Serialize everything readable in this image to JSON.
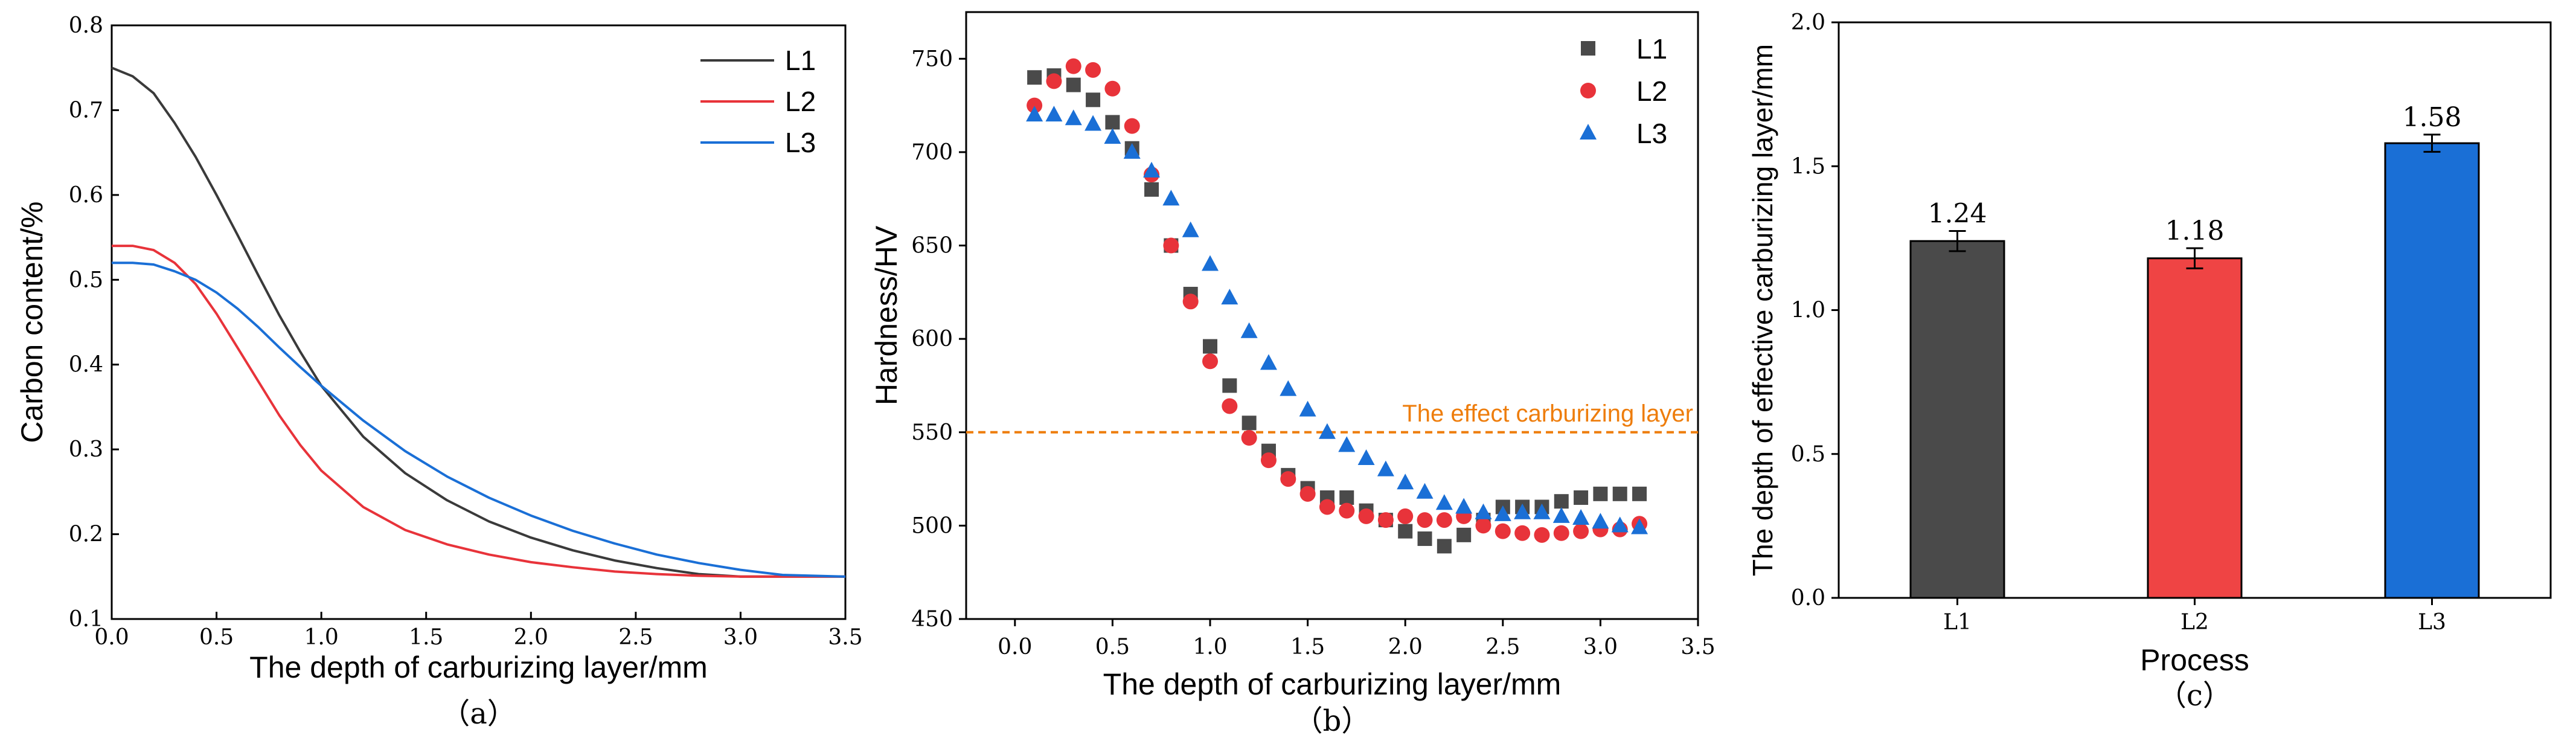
{
  "chart_data": [
    {
      "type": "line",
      "panel": "(a)",
      "caption": "（a）",
      "xlabel": "The depth of carburizing layer/mm",
      "ylabel": "Carbon content/%",
      "xlim": [
        0.0,
        3.5
      ],
      "ylim": [
        0.1,
        0.8
      ],
      "xticks": [
        0.0,
        0.5,
        1.0,
        1.5,
        2.0,
        2.5,
        3.0,
        3.5
      ],
      "yticks": [
        0.1,
        0.2,
        0.3,
        0.4,
        0.5,
        0.6,
        0.7,
        0.8
      ],
      "legend_position": "top-right",
      "series": [
        {
          "name": "L1",
          "color": "#3a3a3a",
          "x": [
            0.0,
            0.1,
            0.2,
            0.3,
            0.4,
            0.5,
            0.6,
            0.7,
            0.8,
            0.9,
            1.0,
            1.2,
            1.4,
            1.6,
            1.8,
            2.0,
            2.2,
            2.4,
            2.6,
            2.8,
            3.0,
            3.2,
            3.5
          ],
          "y": [
            0.75,
            0.74,
            0.72,
            0.685,
            0.645,
            0.6,
            0.553,
            0.505,
            0.458,
            0.415,
            0.375,
            0.315,
            0.272,
            0.24,
            0.215,
            0.196,
            0.181,
            0.169,
            0.16,
            0.153,
            0.15,
            0.15,
            0.15
          ]
        },
        {
          "name": "L2",
          "color": "#e8333a",
          "x": [
            0.0,
            0.1,
            0.2,
            0.3,
            0.4,
            0.5,
            0.6,
            0.7,
            0.8,
            0.9,
            1.0,
            1.2,
            1.4,
            1.6,
            1.8,
            2.0,
            2.2,
            2.4,
            2.6,
            2.8,
            3.0,
            3.2,
            3.5
          ],
          "y": [
            0.54,
            0.54,
            0.535,
            0.52,
            0.495,
            0.46,
            0.42,
            0.38,
            0.34,
            0.305,
            0.275,
            0.232,
            0.205,
            0.188,
            0.176,
            0.167,
            0.161,
            0.156,
            0.153,
            0.151,
            0.15,
            0.15,
            0.15
          ]
        },
        {
          "name": "L3",
          "color": "#1a6fd6",
          "x": [
            0.0,
            0.1,
            0.2,
            0.3,
            0.4,
            0.5,
            0.6,
            0.7,
            0.8,
            0.9,
            1.0,
            1.2,
            1.4,
            1.6,
            1.8,
            2.0,
            2.2,
            2.4,
            2.6,
            2.8,
            3.0,
            3.2,
            3.5
          ],
          "y": [
            0.52,
            0.52,
            0.518,
            0.51,
            0.5,
            0.485,
            0.466,
            0.444,
            0.42,
            0.397,
            0.375,
            0.334,
            0.298,
            0.268,
            0.243,
            0.222,
            0.204,
            0.189,
            0.176,
            0.166,
            0.158,
            0.152,
            0.15
          ]
        }
      ]
    },
    {
      "type": "scatter",
      "panel": "(b)",
      "caption": "（b）",
      "xlabel": "The depth of carburizing layer/mm",
      "ylabel": "Hardness/HV",
      "xlim": [
        -0.25,
        3.5
      ],
      "ylim": [
        450,
        775
      ],
      "xticks": [
        0.0,
        0.5,
        1.0,
        1.5,
        2.0,
        2.5,
        3.0,
        3.5
      ],
      "yticks": [
        450,
        500,
        550,
        600,
        650,
        700,
        750
      ],
      "legend_position": "top-right",
      "reference_line": {
        "y": 550,
        "label": "The effect carburizing layer",
        "color": "#ee7d0c"
      },
      "series": [
        {
          "name": "L1",
          "marker": "square",
          "color": "#4a4a4a",
          "x": [
            0.1,
            0.2,
            0.3,
            0.4,
            0.5,
            0.6,
            0.7,
            0.8,
            0.9,
            1.0,
            1.1,
            1.2,
            1.3,
            1.4,
            1.5,
            1.6,
            1.7,
            1.8,
            1.9,
            2.0,
            2.1,
            2.2,
            2.3,
            2.4,
            2.5,
            2.6,
            2.7,
            2.8,
            2.9,
            3.0,
            3.1,
            3.2
          ],
          "y": [
            740,
            741,
            736,
            728,
            716,
            702,
            680,
            650,
            624,
            596,
            575,
            555,
            540,
            527,
            520,
            515,
            515,
            508,
            503,
            497,
            493,
            489,
            495,
            503,
            510,
            510,
            510,
            513,
            515,
            517,
            517,
            517
          ]
        },
        {
          "name": "L2",
          "marker": "circle",
          "color": "#e8333a",
          "x": [
            0.1,
            0.2,
            0.3,
            0.4,
            0.5,
            0.6,
            0.7,
            0.8,
            0.9,
            1.0,
            1.1,
            1.2,
            1.3,
            1.4,
            1.5,
            1.6,
            1.7,
            1.8,
            1.9,
            2.0,
            2.1,
            2.2,
            2.3,
            2.4,
            2.5,
            2.6,
            2.7,
            2.8,
            2.9,
            3.0,
            3.1,
            3.2
          ],
          "y": [
            725,
            738,
            746,
            744,
            734,
            714,
            688,
            650,
            620,
            588,
            564,
            547,
            535,
            525,
            517,
            510,
            508,
            505,
            503,
            505,
            503,
            503,
            505,
            500,
            497,
            496,
            495,
            496,
            497,
            498,
            498,
            501
          ]
        },
        {
          "name": "L3",
          "marker": "triangle",
          "color": "#1a6fd6",
          "x": [
            0.1,
            0.2,
            0.3,
            0.4,
            0.5,
            0.6,
            0.7,
            0.8,
            0.9,
            1.0,
            1.1,
            1.2,
            1.3,
            1.4,
            1.5,
            1.6,
            1.7,
            1.8,
            1.9,
            2.0,
            2.1,
            2.2,
            2.3,
            2.4,
            2.5,
            2.6,
            2.7,
            2.8,
            2.9,
            3.0,
            3.1,
            3.2
          ],
          "y": [
            720,
            720,
            718,
            715,
            708,
            700,
            690,
            675,
            658,
            640,
            622,
            604,
            587,
            573,
            562,
            550,
            543,
            536,
            530,
            523,
            518,
            512,
            510,
            507,
            506,
            507,
            507,
            505,
            504,
            502,
            500,
            499
          ]
        }
      ]
    },
    {
      "type": "bar",
      "panel": "(c)",
      "caption": "（c）",
      "xlabel": "Process",
      "ylabel": "The depth of effective carburizing layer/mm",
      "ylim": [
        0.0,
        2.0
      ],
      "yticks": [
        0.0,
        0.5,
        1.0,
        1.5,
        2.0
      ],
      "categories": [
        "L1",
        "L2",
        "L3"
      ],
      "values": [
        1.24,
        1.18,
        1.58
      ],
      "value_labels": [
        "1.24",
        "1.18",
        "1.58"
      ],
      "errors": [
        0.035,
        0.035,
        0.03
      ],
      "colors": [
        "#4a4a4a",
        "#ef4444",
        "#1a6fd6"
      ]
    }
  ]
}
